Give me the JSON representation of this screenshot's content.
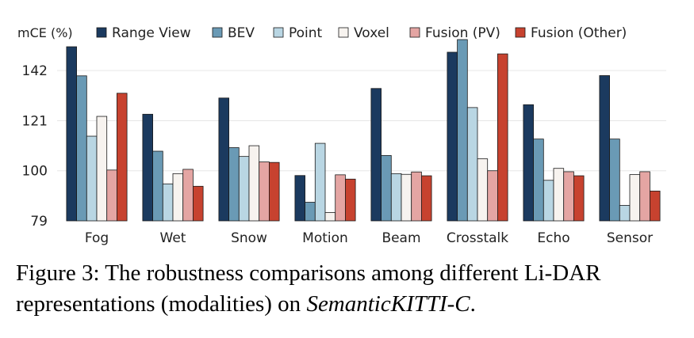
{
  "chart_data": {
    "type": "bar",
    "ylabel": "mCE (%)",
    "ylim": [
      79,
      155
    ],
    "yticks": [
      79,
      100,
      121,
      142
    ],
    "categories": [
      "Fog",
      "Wet",
      "Snow",
      "Motion",
      "Beam",
      "Crosstalk",
      "Echo",
      "Sensor"
    ],
    "series": [
      {
        "name": "Range View",
        "color": "#1b3a5f",
        "values": [
          152.0,
          123.7,
          130.5,
          98.0,
          134.5,
          149.7,
          127.7,
          139.9
        ]
      },
      {
        "name": "BEV",
        "color": "#6a9ab5",
        "values": [
          139.8,
          108.2,
          109.7,
          86.8,
          106.4,
          155.0,
          113.3,
          113.3
        ]
      },
      {
        "name": "Point",
        "color": "#b9d6e3",
        "values": [
          114.5,
          94.5,
          106.0,
          111.5,
          98.8,
          126.5,
          96.0,
          85.5
        ]
      },
      {
        "name": "Voxel",
        "color": "#f7f3ef",
        "values": [
          122.8,
          98.8,
          110.5,
          82.5,
          98.5,
          105.0,
          101.0,
          98.4
        ]
      },
      {
        "name": "Fusion (PV)",
        "color": "#e4a5a3",
        "values": [
          100.3,
          100.6,
          103.7,
          98.3,
          99.5,
          100.0,
          99.6,
          99.6
        ]
      },
      {
        "name": "Fusion (Other)",
        "color": "#c7422f",
        "values": [
          132.5,
          93.5,
          103.5,
          96.5,
          97.9,
          149.0,
          97.9,
          91.5
        ]
      }
    ]
  },
  "caption": {
    "prefix": "Figure 3: The robustness comparisons among different Li-DAR representations (modalities) on ",
    "italic": "SemanticKITTI-C",
    "suffix": "."
  }
}
